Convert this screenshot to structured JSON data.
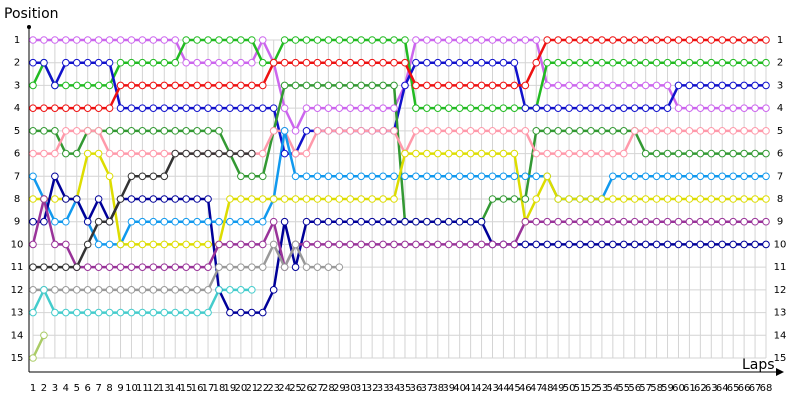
{
  "chart_data": {
    "type": "line",
    "y_label": "Position",
    "x_label": "Laps",
    "xlim": [
      1,
      68
    ],
    "xticks": [
      1,
      2,
      3,
      4,
      5,
      6,
      7,
      8,
      9,
      10,
      11,
      12,
      13,
      14,
      15,
      16,
      17,
      18,
      19,
      20,
      21,
      22,
      23,
      24,
      25,
      26,
      27,
      28,
      29,
      30,
      31,
      32,
      33,
      34,
      35,
      36,
      37,
      38,
      39,
      40,
      41,
      42,
      43,
      44,
      45,
      46,
      47,
      48,
      49,
      50,
      51,
      52,
      53,
      54,
      55,
      56,
      57,
      58,
      59,
      60,
      61,
      62,
      63,
      64,
      65,
      66,
      67,
      68
    ],
    "ylim": [
      1,
      15
    ],
    "y_inverted": true,
    "yticks": [
      1,
      2,
      3,
      4,
      5,
      6,
      7,
      8,
      9,
      10,
      11,
      12,
      13,
      14,
      15
    ],
    "grid": true,
    "series": [
      {
        "color": "#cc66ee",
        "values": [
          1,
          1,
          1,
          1,
          1,
          1,
          1,
          1,
          1,
          1,
          1,
          1,
          1,
          1,
          2,
          2,
          2,
          2,
          2,
          2,
          2,
          1,
          2,
          4,
          5,
          4,
          4,
          4,
          4,
          4,
          4,
          4,
          4,
          4,
          3,
          1,
          1,
          1,
          1,
          1,
          1,
          1,
          1,
          1,
          1,
          1,
          1,
          3,
          3,
          3,
          3,
          3,
          3,
          3,
          3,
          3,
          3,
          3,
          3,
          4,
          4,
          4,
          4,
          4,
          4,
          4,
          4,
          4
        ]
      },
      {
        "color": "#22bb22",
        "values": [
          3,
          2,
          3,
          3,
          3,
          3,
          3,
          3,
          2,
          2,
          2,
          2,
          2,
          2,
          1,
          1,
          1,
          1,
          1,
          1,
          1,
          2,
          2,
          1,
          1,
          1,
          1,
          1,
          1,
          1,
          1,
          1,
          1,
          1,
          1,
          4,
          4,
          4,
          4,
          4,
          4,
          4,
          4,
          4,
          4,
          4,
          4,
          2,
          2,
          2,
          2,
          2,
          2,
          2,
          2,
          2,
          2,
          2,
          2,
          2,
          2,
          2,
          2,
          2,
          2,
          2,
          2,
          2
        ]
      },
      {
        "color": "#1111cc",
        "values": [
          2,
          2,
          3,
          2,
          2,
          2,
          2,
          2,
          4,
          4,
          4,
          4,
          4,
          4,
          4,
          4,
          4,
          4,
          4,
          4,
          4,
          4,
          4,
          6,
          6,
          5,
          5,
          5,
          5,
          5,
          5,
          5,
          5,
          5,
          3,
          2,
          2,
          2,
          2,
          2,
          2,
          2,
          2,
          2,
          2,
          4,
          4,
          4,
          4,
          4,
          4,
          4,
          4,
          4,
          4,
          4,
          4,
          4,
          4,
          3,
          3,
          3,
          3,
          3,
          3,
          3,
          3,
          3
        ]
      },
      {
        "color": "#ee1111",
        "values": [
          4,
          4,
          4,
          4,
          4,
          4,
          4,
          4,
          3,
          3,
          3,
          3,
          3,
          3,
          3,
          3,
          3,
          3,
          3,
          3,
          3,
          3,
          2,
          2,
          2,
          2,
          2,
          2,
          2,
          2,
          2,
          2,
          2,
          2,
          2,
          3,
          3,
          3,
          3,
          3,
          3,
          3,
          3,
          3,
          3,
          3,
          2,
          1,
          1,
          1,
          1,
          1,
          1,
          1,
          1,
          1,
          1,
          1,
          1,
          1,
          1,
          1,
          1,
          1,
          1,
          1,
          1,
          1
        ]
      },
      {
        "color": "#339933",
        "values": [
          5,
          5,
          5,
          6,
          6,
          5,
          5,
          5,
          5,
          5,
          5,
          5,
          5,
          5,
          5,
          5,
          5,
          5,
          6,
          7,
          7,
          7,
          5,
          3,
          3,
          3,
          3,
          3,
          3,
          3,
          3,
          3,
          3,
          3,
          9,
          9,
          9,
          9,
          9,
          9,
          9,
          9,
          8,
          8,
          8,
          8,
          5,
          5,
          5,
          5,
          5,
          5,
          5,
          5,
          5,
          5,
          6,
          6,
          6,
          6,
          6,
          6,
          6,
          6,
          6,
          6,
          6,
          6
        ]
      },
      {
        "color": "#ff99aa",
        "values": [
          6,
          6,
          6,
          5,
          5,
          5,
          5,
          6,
          6,
          6,
          6,
          6,
          6,
          6,
          6,
          6,
          6,
          6,
          6,
          6,
          6,
          6,
          5,
          5,
          6,
          6,
          5,
          5,
          5,
          5,
          5,
          5,
          5,
          5,
          6,
          5,
          5,
          5,
          5,
          5,
          5,
          5,
          5,
          5,
          5,
          5,
          6,
          6,
          6,
          6,
          6,
          6,
          6,
          6,
          6,
          5,
          5,
          5,
          5,
          5,
          5,
          5,
          5,
          5,
          5,
          5,
          5,
          5
        ]
      },
      {
        "color": "#1199ee",
        "values": [
          7,
          8,
          9,
          9,
          8,
          9,
          10,
          10,
          10,
          9,
          9,
          9,
          9,
          9,
          9,
          9,
          9,
          9,
          9,
          9,
          9,
          9,
          8,
          5,
          7,
          7,
          7,
          7,
          7,
          7,
          7,
          7,
          7,
          7,
          7,
          7,
          7,
          7,
          7,
          7,
          7,
          7,
          7,
          7,
          7,
          7,
          7,
          7,
          8,
          8,
          8,
          8,
          8,
          7,
          7,
          7,
          7,
          7,
          7,
          7,
          7,
          7,
          7,
          7,
          7,
          7,
          7,
          7
        ]
      },
      {
        "color": "#dddd00",
        "values": [
          8,
          8,
          8,
          8,
          8,
          6,
          6,
          7,
          10,
          10,
          10,
          10,
          10,
          10,
          10,
          10,
          10,
          10,
          8,
          8,
          8,
          8,
          8,
          8,
          8,
          8,
          8,
          8,
          8,
          8,
          8,
          8,
          8,
          8,
          6,
          6,
          6,
          6,
          6,
          6,
          6,
          6,
          6,
          6,
          6,
          9,
          8,
          7,
          8,
          8,
          8,
          8,
          8,
          8,
          8,
          8,
          8,
          8,
          8,
          8,
          8,
          8,
          8,
          8,
          8,
          8,
          8,
          8
        ]
      },
      {
        "color": "#000099",
        "values": [
          9,
          9,
          7,
          8,
          8,
          9,
          8,
          9,
          8,
          8,
          8,
          8,
          8,
          8,
          8,
          8,
          8,
          12,
          13,
          13,
          13,
          13,
          12,
          9,
          11,
          9,
          9,
          9,
          9,
          9,
          9,
          9,
          9,
          9,
          9,
          9,
          9,
          9,
          9,
          9,
          9,
          9,
          10,
          10,
          10,
          10,
          10,
          10,
          10,
          10,
          10,
          10,
          10,
          10,
          10,
          10,
          10,
          10,
          10,
          10,
          10,
          10,
          10,
          10,
          10,
          10,
          10,
          10
        ]
      },
      {
        "color": "#993399",
        "values": [
          10,
          8,
          10,
          10,
          11,
          11,
          11,
          11,
          11,
          11,
          11,
          11,
          11,
          11,
          11,
          11,
          11,
          10,
          10,
          10,
          10,
          10,
          9,
          11,
          10,
          10,
          10,
          10,
          10,
          10,
          10,
          10,
          10,
          10,
          10,
          10,
          10,
          10,
          10,
          10,
          10,
          10,
          10,
          10,
          10,
          9,
          9,
          9,
          9,
          9,
          9,
          9,
          9,
          9,
          9,
          9,
          9,
          9,
          9,
          9,
          9,
          9,
          9,
          9,
          9,
          9,
          9,
          9
        ]
      },
      {
        "color": "#333333",
        "values": [
          11,
          11,
          11,
          11,
          11,
          10,
          9,
          9,
          8,
          7,
          7,
          7,
          7,
          6,
          6,
          6,
          6,
          6,
          6,
          6,
          6,
          null,
          null,
          null,
          null,
          null,
          null,
          null,
          null,
          null,
          null,
          null,
          null,
          null,
          null,
          null,
          null,
          null,
          null,
          null,
          null,
          null,
          null,
          null,
          null,
          null,
          null,
          null,
          null,
          null,
          null,
          null,
          null,
          null,
          null,
          null,
          null,
          null,
          null,
          null,
          null,
          null,
          null,
          null,
          null,
          null,
          null,
          null
        ]
      },
      {
        "color": "#999999",
        "values": [
          12,
          12,
          12,
          12,
          12,
          12,
          12,
          12,
          12,
          12,
          12,
          12,
          12,
          12,
          12,
          12,
          12,
          11,
          11,
          11,
          11,
          11,
          10,
          11,
          10,
          11,
          11,
          11,
          11,
          null,
          null,
          null,
          null,
          null,
          null,
          null,
          null,
          null,
          null,
          null,
          null,
          null,
          null,
          null,
          null,
          null,
          null,
          null,
          null,
          null,
          null,
          null,
          null,
          null,
          null,
          null,
          null,
          null,
          null,
          null,
          null,
          null,
          null,
          null,
          null,
          null,
          null,
          null
        ]
      },
      {
        "color": "#44cccc",
        "values": [
          13,
          12,
          13,
          13,
          13,
          13,
          13,
          13,
          13,
          13,
          13,
          13,
          13,
          13,
          13,
          13,
          13,
          12,
          12,
          12,
          12,
          null,
          null,
          null,
          null,
          null,
          null,
          null,
          null,
          null,
          null,
          null,
          null,
          null,
          null,
          null,
          null,
          null,
          null,
          null,
          null,
          null,
          null,
          null,
          null,
          null,
          null,
          null,
          null,
          null,
          null,
          null,
          null,
          null,
          null,
          null,
          null,
          null,
          null,
          null,
          null,
          null,
          null,
          null,
          null,
          null,
          null,
          null
        ]
      },
      {
        "color": "#aacc66",
        "values": [
          15,
          14,
          null,
          null,
          null,
          null,
          null,
          null,
          null,
          null,
          null,
          null,
          null,
          null,
          null,
          null,
          null,
          null,
          null,
          null,
          null,
          null,
          null,
          null,
          null,
          null,
          null,
          null,
          null,
          null,
          null,
          null,
          null,
          null,
          null,
          null,
          null,
          null,
          null,
          null,
          null,
          null,
          null,
          null,
          null,
          null,
          null,
          null,
          null,
          null,
          null,
          null,
          null,
          null,
          null,
          null,
          null,
          null,
          null,
          null,
          null,
          null,
          null,
          null,
          null,
          null,
          null,
          null
        ]
      }
    ]
  }
}
